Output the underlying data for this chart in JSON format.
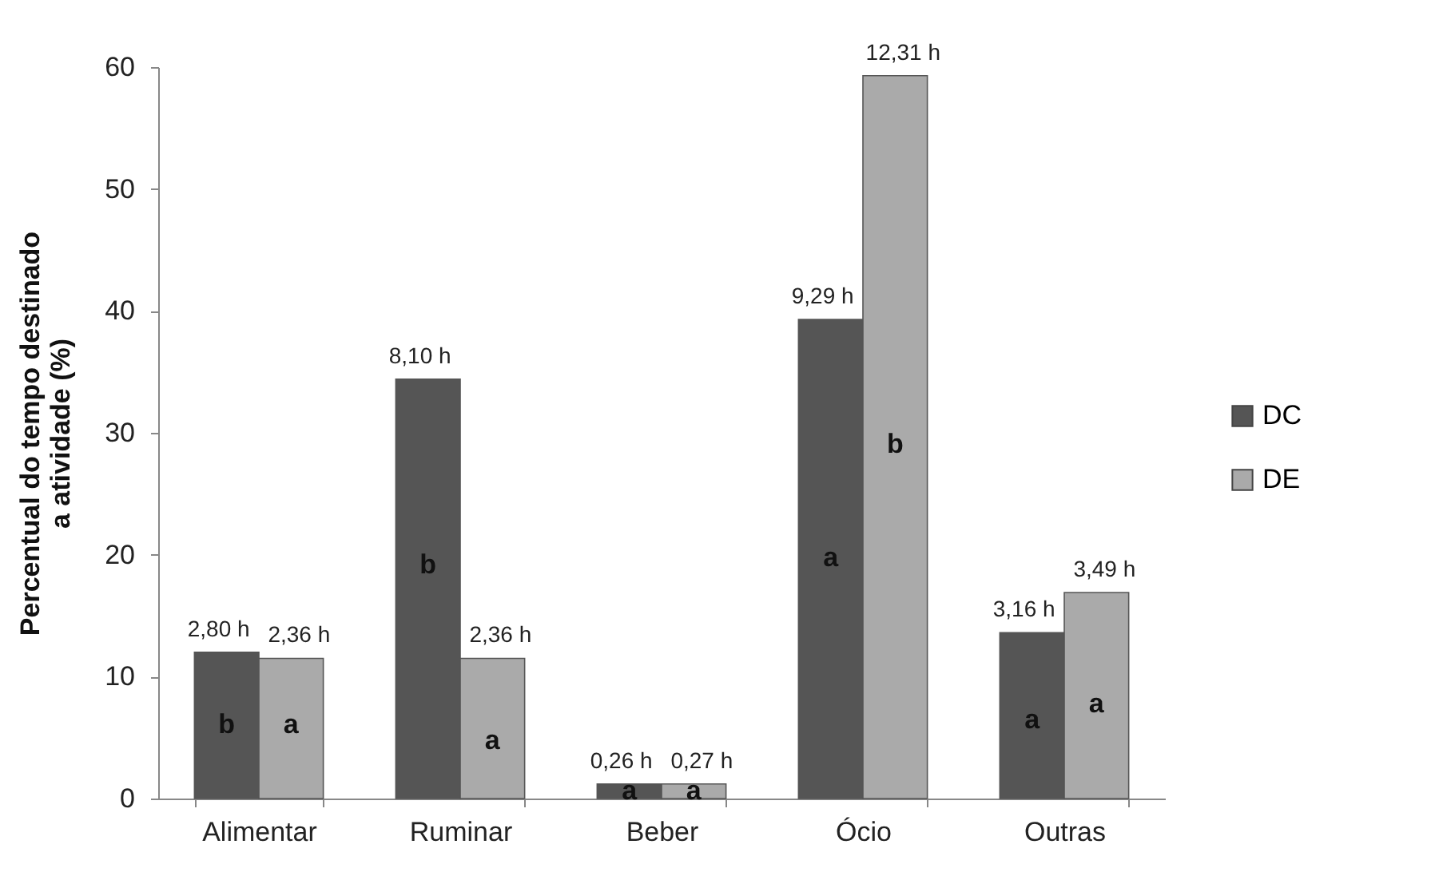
{
  "chart_data": {
    "type": "bar",
    "ylabel": "Percentual do tempo destinado a atividade (%)",
    "categories": [
      "Alimentar",
      "Ruminar",
      "Beber",
      "Ócio",
      "Outras"
    ],
    "series": [
      {
        "name": "DC",
        "color": "#555555",
        "values": [
          12.0,
          34.4,
          1.2,
          39.3,
          13.6
        ]
      },
      {
        "name": "DE",
        "color": "#aaaaaa",
        "values": [
          11.5,
          11.5,
          1.2,
          59.3,
          16.9
        ]
      }
    ],
    "annotations": [
      {
        "text": "2,80 h",
        "x": "Alimentar",
        "y": 12.0
      },
      {
        "text": "2,36 h",
        "x": "Alimentar",
        "y": 11.5
      },
      {
        "text": "8,10 h",
        "x": "Ruminar",
        "y": 34.4
      },
      {
        "text": "2,36 h",
        "x": "Ruminar",
        "y": 11.5
      },
      {
        "text": "0,26 h",
        "x": "Beber",
        "y": 1.2
      },
      {
        "text": "0,27 h",
        "x": "Beber",
        "y": 1.2
      },
      {
        "text": "9,29 h",
        "x": "Ócio",
        "y": 39.3
      },
      {
        "text": "12,31 h",
        "x": "Ócio",
        "y": 59.3
      },
      {
        "text": "3,16 h",
        "x": "Outras",
        "y": 13.6
      },
      {
        "text": "3,49 h",
        "x": "Outras",
        "y": 16.9
      },
      {
        "text": "b",
        "x": "Alimentar",
        "y": 6.0
      },
      {
        "text": "a",
        "x": "Alimentar",
        "y": 6.0
      },
      {
        "text": "b",
        "x": "Ruminar",
        "y": 19.1
      },
      {
        "text": "a",
        "x": "Ruminar",
        "y": 4.7
      },
      {
        "text": "a",
        "x": "Beber",
        "y": 0.6
      },
      {
        "text": "a",
        "x": "Beber",
        "y": 0.6
      },
      {
        "text": "a",
        "x": "Ócio",
        "y": 19.7
      },
      {
        "text": "b",
        "x": "Ócio",
        "y": 29.0
      },
      {
        "text": "a",
        "x": "Outras",
        "y": 6.4
      },
      {
        "text": "a",
        "x": "Outras",
        "y": 7.7
      }
    ],
    "ylim": [
      0,
      60
    ],
    "yticks": [
      0,
      10,
      20,
      30,
      40,
      50,
      60
    ],
    "legend": "right"
  }
}
